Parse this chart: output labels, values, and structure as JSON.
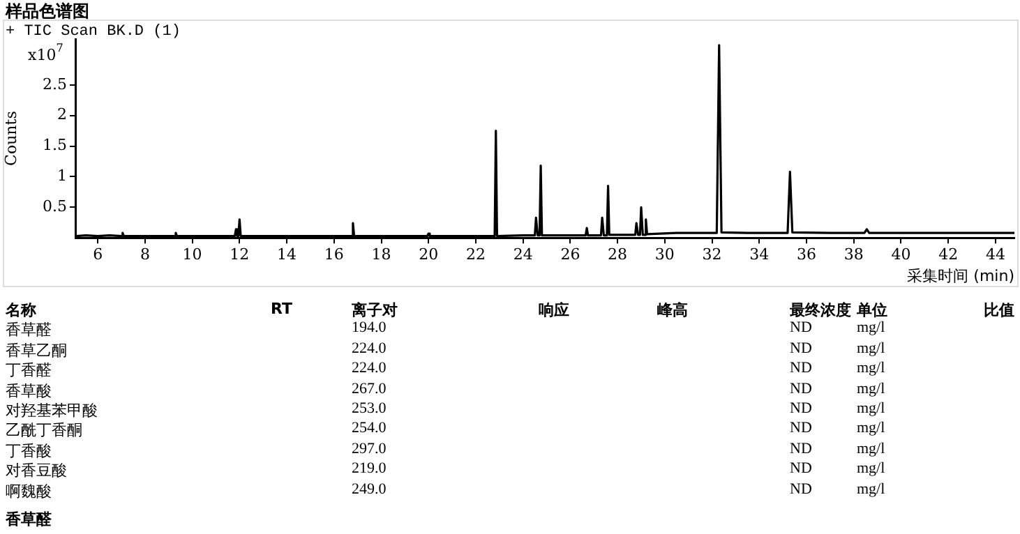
{
  "chart_data": {
    "type": "line",
    "title": "样品色谱图",
    "subtitle": "+ TIC Scan BK.D (1)",
    "xlabel": "采集时间 (min)",
    "ylabel": "Counts",
    "annotations": [
      "x10$^{7}$",
      "名称\tRT\t离子对\t响应\t峰高\t最终浓度\t单位\t比值",
      "香草醛\t\t194.0\t\t\tND\tmg/l\t",
      "香草乙酮\t\t224.0\t\t\tND\tmg/l\t",
      "丁香醛\t\t224.0\t\t\tND\tmg/l\t",
      "香草酸\t\t267.0\t\t\tND\tmg/l\t",
      "对羟基苯甲酸\t\t253.0\t\t\tND\tmg/l\t",
      "乙酰丁香酮\t\t254.0\t\t\tND\tmg/l\t",
      "丁香酸\t\t297.0\t\t\tND\tmg/l\t",
      "对香豆酸\t\t219.0\t\t\tND\tmg/l\t",
      "啊魏酸\t\t249.0\t\t\tND\tmg/l\t",
      "香草醛"
    ],
    "x": [
      5.1,
      5.5,
      6.0,
      6.5,
      7.0,
      7.05,
      7.1,
      8.0,
      9.25,
      9.3,
      9.35,
      10.5,
      11.8,
      11.85,
      11.9,
      11.95,
      12.0,
      12.05,
      13.0,
      14.5,
      16.75,
      16.8,
      16.85,
      18.5,
      19.95,
      20.0,
      20.05,
      21.5,
      22.8,
      22.85,
      22.9,
      24.0,
      24.5,
      24.55,
      24.62,
      24.7,
      24.75,
      24.8,
      25.7,
      26.65,
      26.7,
      26.75,
      27.3,
      27.35,
      27.42,
      27.55,
      27.6,
      27.65,
      28.7,
      28.75,
      28.8,
      28.87,
      28.95,
      29.0,
      29.07,
      29.15,
      29.2,
      29.25,
      30.5,
      32.2,
      32.3,
      32.4,
      33.5,
      35.2,
      35.3,
      35.4,
      37.0,
      38.45,
      38.55,
      38.65,
      40.0,
      42.0,
      44.8
    ],
    "values": [
      0.03,
      0.04,
      0.03,
      0.04,
      0.03,
      0.08,
      0.03,
      0.03,
      0.03,
      0.08,
      0.03,
      0.03,
      0.03,
      0.14,
      0.03,
      0.03,
      0.3,
      0.03,
      0.03,
      0.03,
      0.03,
      0.24,
      0.03,
      0.03,
      0.03,
      0.07,
      0.03,
      0.03,
      0.03,
      1.75,
      0.03,
      0.04,
      0.04,
      0.33,
      0.04,
      0.04,
      1.18,
      0.04,
      0.04,
      0.04,
      0.16,
      0.04,
      0.04,
      0.33,
      0.04,
      0.04,
      0.85,
      0.05,
      0.05,
      0.05,
      0.24,
      0.05,
      0.05,
      0.5,
      0.05,
      0.05,
      0.3,
      0.06,
      0.08,
      0.08,
      3.15,
      0.09,
      0.08,
      0.08,
      1.08,
      0.09,
      0.08,
      0.08,
      0.14,
      0.08,
      0.08,
      0.08,
      0.08
    ],
    "color": "#000000",
    "xlim": [
      5.05,
      44.8
    ],
    "xticks": [
      6,
      8,
      10,
      12,
      14,
      16,
      18,
      20,
      22,
      24,
      26,
      28,
      30,
      32,
      34,
      36,
      38,
      40,
      42,
      44
    ],
    "ylim": [
      0,
      3.25
    ],
    "yticks": [
      0.5,
      1,
      1.5,
      2,
      2.5
    ],
    "grid": false,
    "legend": false,
    "marker": "none",
    "line_style": "solid"
  }
}
